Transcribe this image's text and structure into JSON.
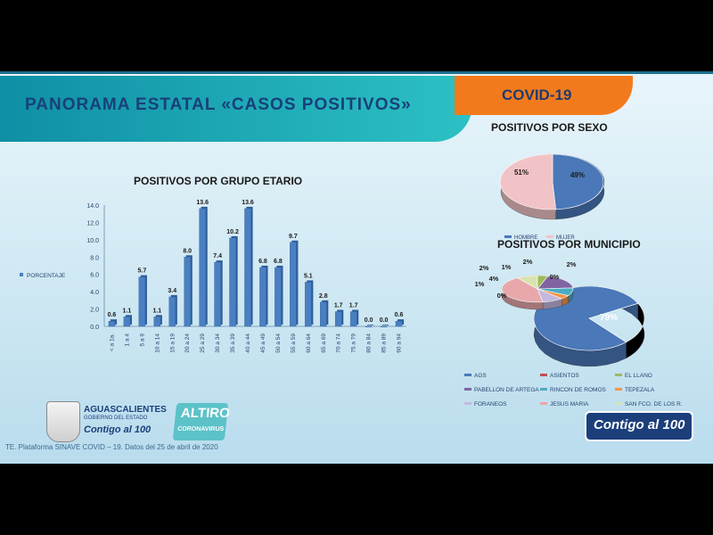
{
  "title": "PANORAMA ESTATAL «CASOS POSITIVOS»",
  "tab": "COVID-19",
  "source": "TE. Plataforma SINAVE COVID – 19. Datos del 25 de abril de 2020",
  "logos": {
    "state_name": "AGUASCALIENTES",
    "state_sub": "GOBIERNO DEL ESTADO",
    "contigo": "Contigo al 100",
    "altiro": "ALTIRO",
    "coronavirus": "CORONAVIRUS",
    "badge": "Contigo al 100"
  },
  "chart_data": [
    {
      "type": "bar",
      "title": "POSITIVOS POR GRUPO ETARIO",
      "legend": [
        "PORCENTAJE"
      ],
      "categories": [
        "< a 1a.",
        "1 a 4",
        "5 a 9",
        "10 a 14",
        "15 a 19",
        "20 a 24",
        "25 a 29",
        "30 a 34",
        "35 a 39",
        "40 a 44",
        "45 a 49",
        "50 a 54",
        "55 a 59",
        "60 a 64",
        "65 a 69",
        "70 a 74",
        "75 a 79",
        "80 a 84",
        "85 a 89",
        "90 a 94"
      ],
      "values": [
        0.6,
        1.1,
        5.7,
        1.1,
        3.4,
        8.0,
        13.6,
        7.4,
        10.2,
        13.6,
        6.8,
        6.8,
        9.7,
        5.1,
        2.8,
        1.7,
        1.7,
        0.0,
        0.0,
        0.6
      ],
      "yticks": [
        "0.0",
        "2.0",
        "4.0",
        "6.0",
        "8.0",
        "10.0",
        "12.0",
        "14.0"
      ],
      "ylim": [
        0,
        14
      ],
      "color": "#4a7fc1"
    },
    {
      "type": "pie",
      "title": "POSITIVOS POR SEXO",
      "labels": [
        "HOMBRE",
        "MUJER"
      ],
      "values": [
        49,
        51
      ],
      "value_labels": [
        "49%",
        "51%"
      ],
      "colors": [
        "#4a78b8",
        "#f2c3c6"
      ]
    },
    {
      "type": "pie",
      "title": "POSITIVOS POR MUNICIPIO",
      "labels": [
        "AGS",
        "ASIENTOS",
        "EL LLANO",
        "PABELLON DE ARTEGA",
        "RINCON DE ROMOS",
        "TEPEZALA",
        "FORANEOS",
        "JESUS MARIA",
        "SAN FCO. DE LOS R."
      ],
      "values": [
        79,
        0,
        1,
        4,
        2,
        1,
        2,
        9,
        2
      ],
      "value_labels": [
        "79%",
        "0%",
        "1%",
        "4%",
        "2%",
        "1%",
        "2%",
        "9%",
        "2%"
      ],
      "colors": [
        "#4a78b8",
        "#c0504d",
        "#9bbb59",
        "#8064a2",
        "#4bacc6",
        "#f79646",
        "#c4b8e0",
        "#e8a8ab",
        "#d9e3b0"
      ]
    }
  ]
}
